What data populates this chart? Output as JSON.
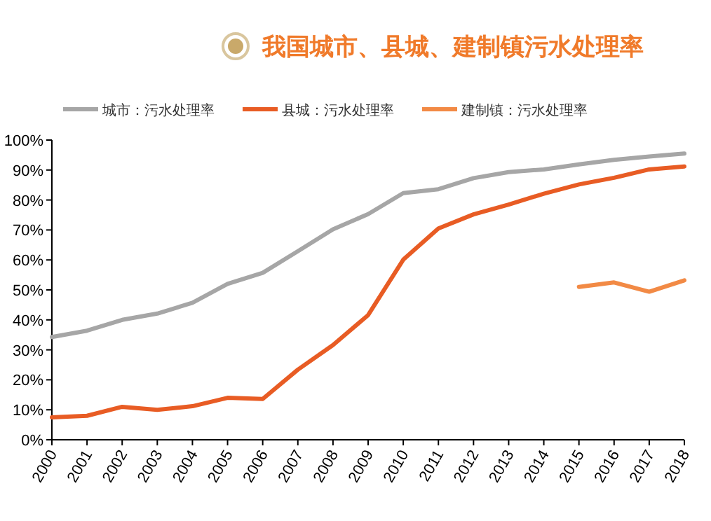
{
  "chart_data": {
    "type": "line",
    "title": "我国城市、县城、建制镇污水处理率",
    "categories": [
      "2000",
      "2001",
      "2002",
      "2003",
      "2004",
      "2005",
      "2006",
      "2007",
      "2008",
      "2009",
      "2010",
      "2011",
      "2012",
      "2013",
      "2014",
      "2015",
      "2016",
      "2017",
      "2018"
    ],
    "series": [
      {
        "name": "城市：污水处理率",
        "color": "#a6a6a6",
        "values": [
          34.3,
          36.4,
          40,
          42.1,
          45.7,
          52,
          55.7,
          62.9,
          70.2,
          75.3,
          82.3,
          83.6,
          87.3,
          89.3,
          90.2,
          91.9,
          93.4,
          94.5,
          95.5
        ]
      },
      {
        "name": "县城：污水处理率",
        "color": "#e85c24",
        "values": [
          7.5,
          8,
          11,
          10,
          11.2,
          14,
          13.6,
          23.4,
          31.6,
          41.6,
          60.1,
          70.5,
          75.2,
          78.5,
          82.1,
          85.2,
          87.4,
          90.2,
          91.2
        ]
      },
      {
        "name": "建制镇：污水处理率",
        "color": "#f28a45",
        "values": [
          null,
          null,
          null,
          null,
          null,
          null,
          null,
          null,
          null,
          null,
          null,
          null,
          null,
          null,
          null,
          51,
          52.5,
          49.4,
          53.2
        ]
      }
    ],
    "ylim": [
      0,
      100
    ],
    "yticks": [
      {
        "value": 0,
        "label": "0%"
      },
      {
        "value": 10,
        "label": "10%"
      },
      {
        "value": 20,
        "label": "20%"
      },
      {
        "value": 30,
        "label": "30%"
      },
      {
        "value": 40,
        "label": "40%"
      },
      {
        "value": 50,
        "label": "50%"
      },
      {
        "value": 60,
        "label": "60%"
      },
      {
        "value": 70,
        "label": "70%"
      },
      {
        "value": 80,
        "label": "80%"
      },
      {
        "value": 90,
        "label": "90%"
      },
      {
        "value": 100,
        "label": "100%"
      }
    ],
    "grid": false,
    "legend": "top",
    "marker": "none",
    "line_style": "solid"
  }
}
